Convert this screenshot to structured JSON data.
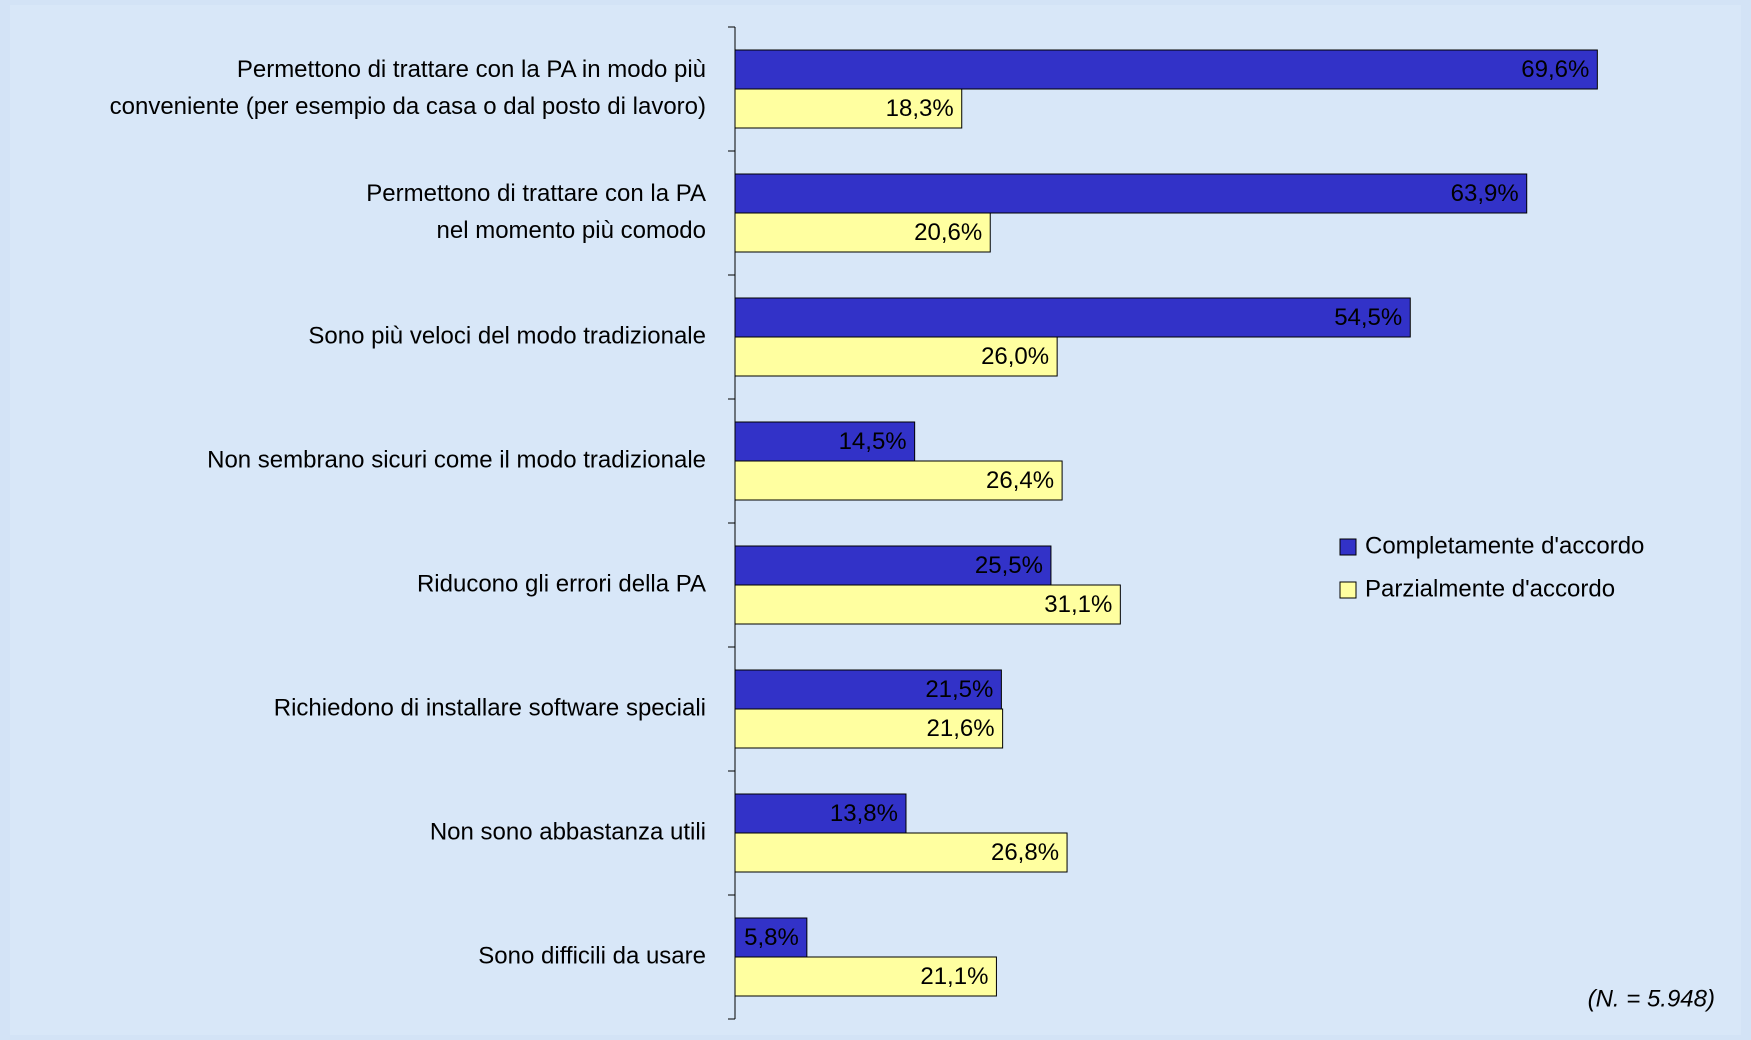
{
  "chart_data": {
    "type": "bar",
    "orientation": "horizontal",
    "categories": [
      [
        "Permettono di trattare con la PA in modo più",
        "conveniente  (per esempio da casa o dal posto di lavoro)"
      ],
      [
        "Permettono di trattare con la PA",
        "nel momento più comodo"
      ],
      [
        "Sono più veloci del modo tradizionale"
      ],
      [
        "Non sembrano sicuri come il modo tradizionale"
      ],
      [
        "Riducono gli errori della PA"
      ],
      [
        "Richiedono di installare software speciali"
      ],
      [
        "Non sono abbastanza utili"
      ],
      [
        "Sono difficili da usare"
      ]
    ],
    "series": [
      {
        "name": "Completamente d'accordo",
        "color": "#3232c8",
        "values": [
          69.6,
          63.9,
          54.5,
          14.5,
          25.5,
          21.5,
          13.8,
          5.8
        ],
        "value_labels": [
          "69,6%",
          "63,9%",
          "54,5%",
          "14,5%",
          "25,5%",
          "21,5%",
          "13,8%",
          "5,8%"
        ]
      },
      {
        "name": "Parzialmente d'accordo",
        "color": "#ffffa0",
        "values": [
          18.3,
          20.6,
          26.0,
          26.4,
          31.1,
          21.6,
          26.8,
          21.1
        ],
        "value_labels": [
          "18,3%",
          "20,6%",
          "26,0%",
          "26,4%",
          "31,1%",
          "21,6%",
          "26,8%",
          "21,1%"
        ]
      }
    ],
    "legend": "right",
    "annotation": "(N. = 5.948)"
  }
}
